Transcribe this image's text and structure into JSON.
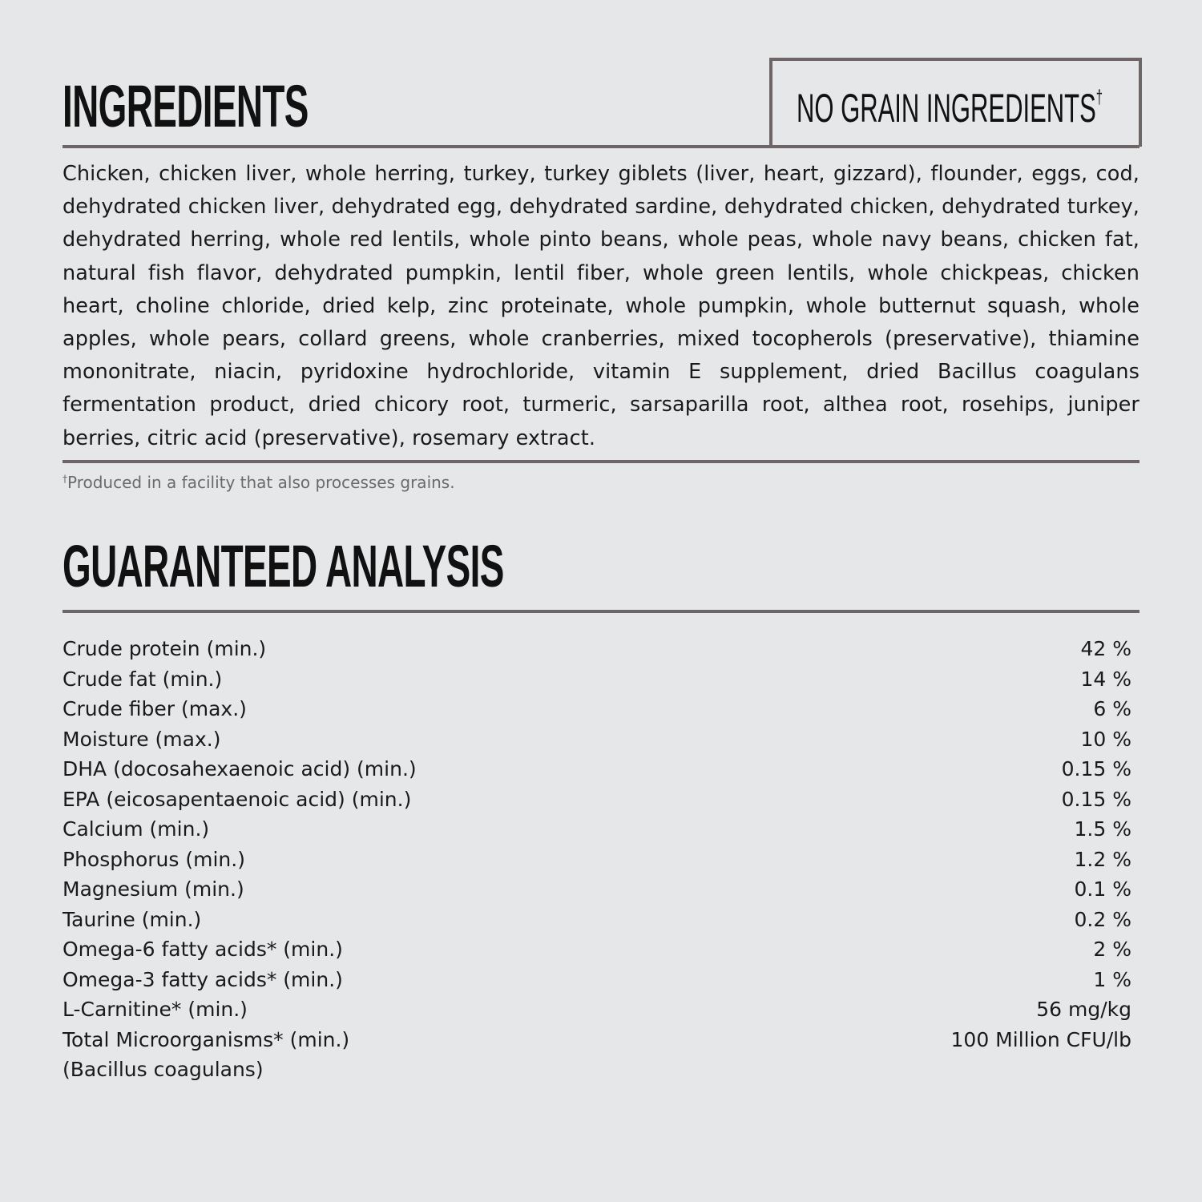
{
  "ingredients": {
    "title": "INGREDIENTS",
    "badge": "NO GRAIN INGREDIENTS",
    "badge_mark": "†",
    "text": "Chicken, chicken liver, whole herring, turkey, turkey giblets (liver, heart, gizzard), flounder, eggs, cod, dehydrated chicken liver, dehydrated egg, dehydrated sardine, dehydrated chicken, dehydrated turkey, dehydrated herring, whole red lentils, whole pinto beans, whole peas, whole navy beans, chicken fat, natural fish flavor, dehydrated pumpkin, lentil fiber, whole green lentils, whole chickpeas, chicken heart, choline chloride, dried kelp, zinc proteinate, whole pumpkin, whole butternut squash, whole apples, whole pears, collard greens, whole cranberries, mixed tocopherols (preservative), thiamine mononitrate, niacin, pyridoxine hydrochloride, vitamin E supplement, dried Bacillus coagulans fermentation product, dried chicory root, turmeric, sarsaparilla root, althea root, rosehips, juniper berries, citric acid (preservative), rosemary extract.",
    "footnote_mark": "†",
    "footnote": "Produced in a facility that also processes grains."
  },
  "analysis": {
    "title": "GUARANTEED ANALYSIS",
    "rows": [
      {
        "label": "Crude protein (min.)",
        "value": "42 %"
      },
      {
        "label": "Crude fat (min.)",
        "value": "14 %"
      },
      {
        "label": "Crude fiber (max.)",
        "value": "6 %"
      },
      {
        "label": "Moisture (max.)",
        "value": "10 %"
      },
      {
        "label": "DHA (docosahexaenoic acid) (min.)",
        "value": "0.15 %"
      },
      {
        "label": "EPA (eicosapentaenoic acid) (min.)",
        "value": "0.15 %"
      },
      {
        "label": "Calcium (min.)",
        "value": "1.5 %"
      },
      {
        "label": "Phosphorus (min.)",
        "value": "1.2 %"
      },
      {
        "label": "Magnesium (min.)",
        "value": "0.1 %"
      },
      {
        "label": "Taurine (min.)",
        "value": "0.2 %"
      },
      {
        "label": "Omega-6 fatty acids* (min.)",
        "value": "2 %"
      },
      {
        "label": "Omega-3 fatty acids* (min.)",
        "value": "1 %"
      },
      {
        "label": "L-Carnitine* (min.)",
        "value": "56 mg/kg"
      },
      {
        "label": "Total Microorganisms* (min.)",
        "value": "100 Million CFU/lb"
      }
    ],
    "last_sub": "(Bacillus coagulans)"
  },
  "colors": {
    "background": "#e6e7e9",
    "rule": "#6e6566"
  }
}
